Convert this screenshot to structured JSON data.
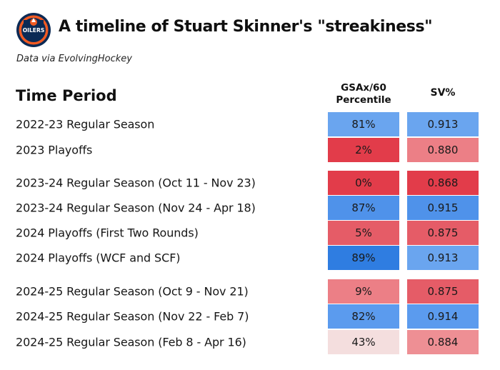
{
  "header": {
    "title": "A timeline of Stuart Skinner's \"streakiness\"",
    "subtitle": "Data via EvolvingHockey",
    "logo_text": "OILERS"
  },
  "colors": {
    "blue_dark": "#2f7de1",
    "blue_mid": "#4f92ea",
    "blue_light": "#6aa5ef",
    "red_dark": "#e23c4a",
    "red_mid": "#e55c67",
    "red_light": "#ec7f86",
    "pink_pale": "#f4dede",
    "logo_orange": "#f15a22",
    "logo_navy": "#0b2a55"
  },
  "chart_data": {
    "type": "table",
    "title": "A timeline of Stuart Skinner's \"streakiness\"",
    "subtitle": "Data via EvolvingHockey",
    "columns": [
      "Time Period",
      "GSAx/60 Percentile",
      "SV%"
    ],
    "rows": [
      {
        "period": "2022-23 Regular Season",
        "gsax": "81%",
        "sv": "0.913",
        "gsax_color": "#6aa5ef",
        "sv_color": "#6aa5ef"
      },
      {
        "period": "2023 Playoffs",
        "gsax": "2%",
        "sv": "0.880",
        "gsax_color": "#e23c4a",
        "sv_color": "#ec7f86"
      },
      {
        "period": "2023-24 Regular Season (Oct 11 - Nov 23)",
        "gsax": "0%",
        "sv": "0.868",
        "gsax_color": "#e23c4a",
        "sv_color": "#e23c4a"
      },
      {
        "period": "2023-24 Regular Season (Nov 24 - Apr 18)",
        "gsax": "87%",
        "sv": "0.915",
        "gsax_color": "#4f92ea",
        "sv_color": "#4f92ea"
      },
      {
        "period": "2024 Playoffs (First Two Rounds)",
        "gsax": "5%",
        "sv": "0.875",
        "gsax_color": "#e55c67",
        "sv_color": "#e55c67"
      },
      {
        "period": "2024 Playoffs (WCF and SCF)",
        "gsax": "89%",
        "sv": "0.913",
        "gsax_color": "#2f7de1",
        "sv_color": "#6aa5ef"
      },
      {
        "period": "2024-25 Regular Season (Oct 9 - Nov 21)",
        "gsax": "9%",
        "sv": "0.875",
        "gsax_color": "#ec7f86",
        "sv_color": "#e55c67"
      },
      {
        "period": "2024-25 Regular Season (Nov 22 - Feb 7)",
        "gsax": "82%",
        "sv": "0.914",
        "gsax_color": "#5b9bee",
        "sv_color": "#5b9bee"
      },
      {
        "period": "2024-25 Regular Season (Feb 8 - Apr 16)",
        "gsax": "43%",
        "sv": "0.884",
        "gsax_color": "#f4dede",
        "sv_color": "#ee8f94"
      }
    ]
  }
}
